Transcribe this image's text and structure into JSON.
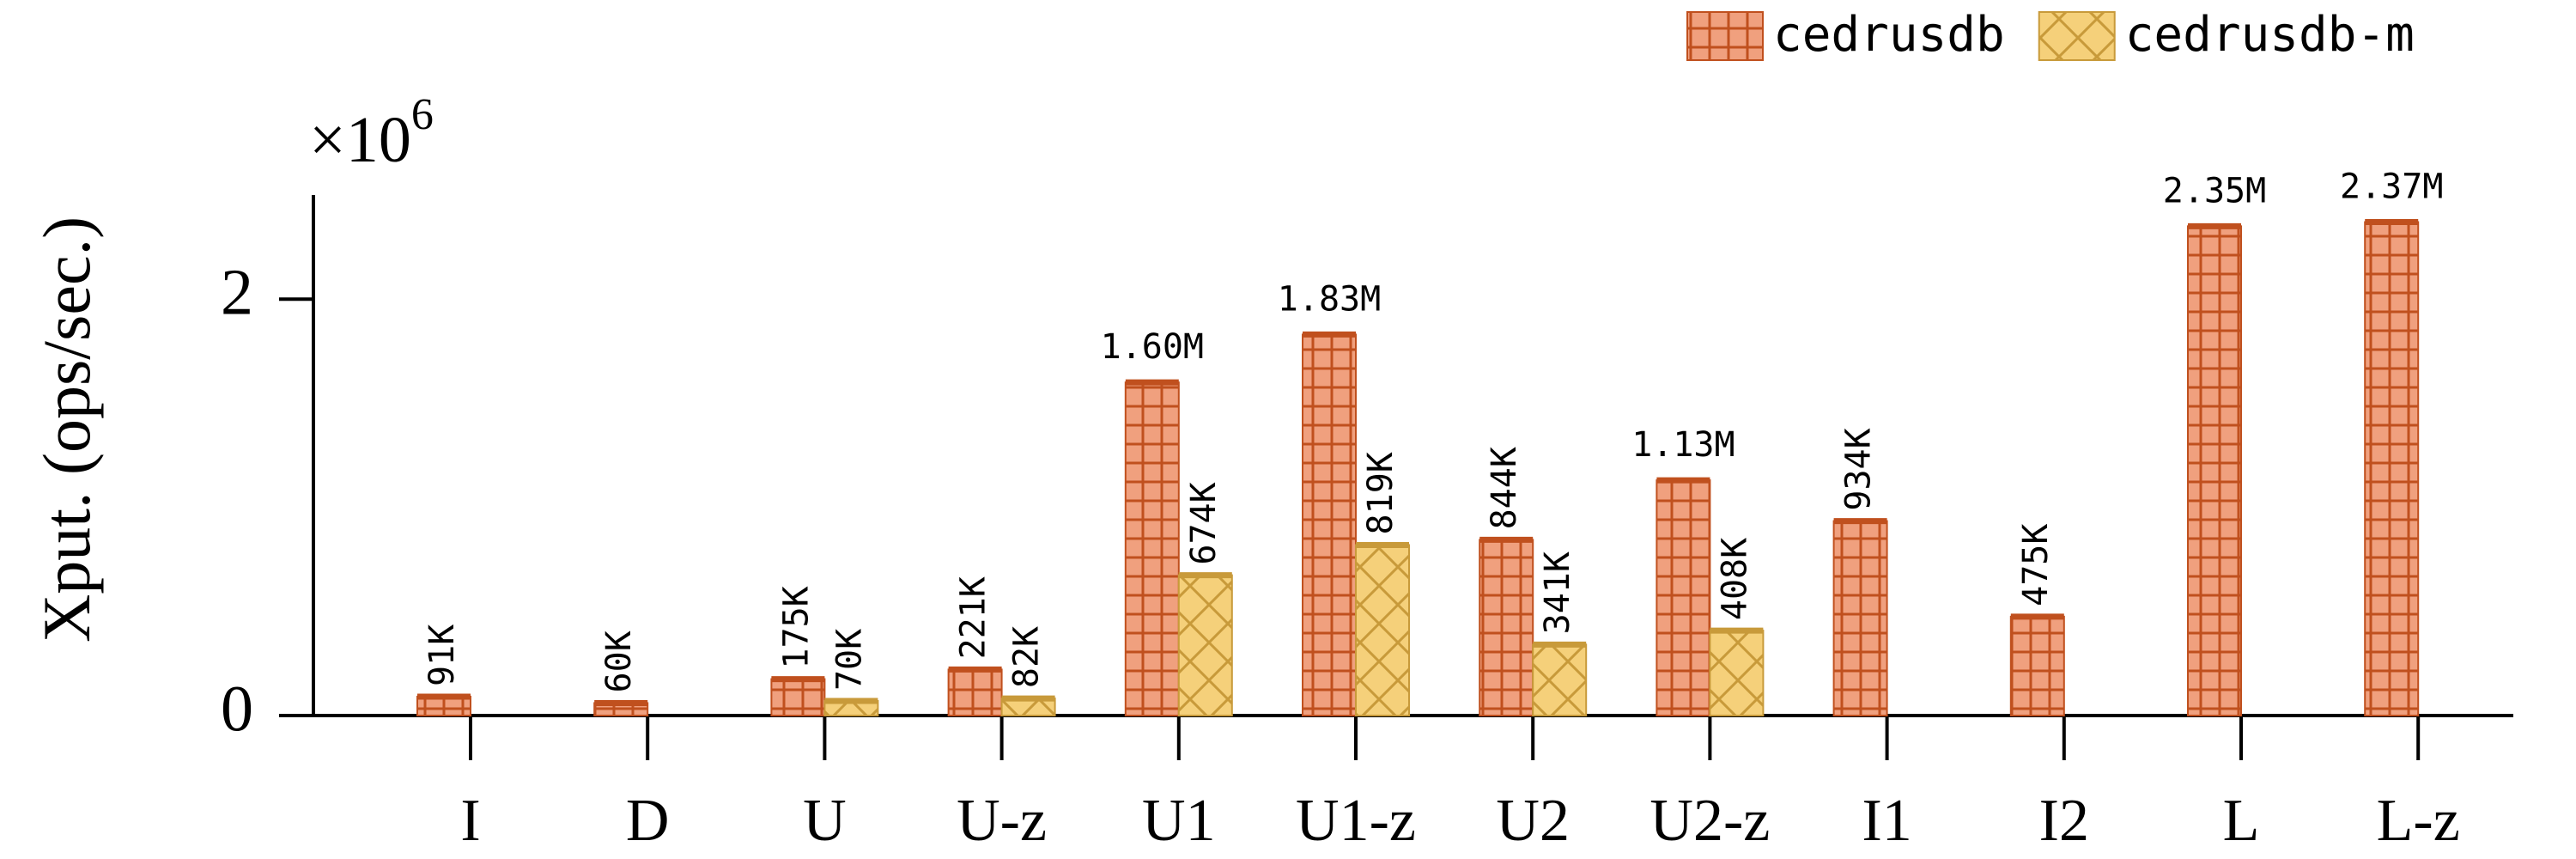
{
  "chart_data": {
    "type": "bar",
    "y_label": "Xput. (ops/sec.)",
    "y_scale": {
      "base": "×10",
      "exponent": "6"
    },
    "categories": [
      "I",
      "D",
      "U",
      "U-z",
      "U1",
      "U1-z",
      "U2",
      "U2-z",
      "I1",
      "I2",
      "L",
      "L-z"
    ],
    "series": [
      {
        "name": "cedrusdb",
        "color": "#f0a07e",
        "hatch_color": "#c0501e",
        "values": [
          0.091,
          0.06,
          0.175,
          0.221,
          1.6,
          1.83,
          0.844,
          1.13,
          0.934,
          0.475,
          2.35,
          2.37
        ],
        "value_labels": [
          "91K",
          "60K",
          "175K",
          "221K",
          "1.60M",
          "1.83M",
          "844K",
          "1.13M",
          "934K",
          "475K",
          "2.35M",
          "2.37M"
        ]
      },
      {
        "name": "cedrusdb-m",
        "color": "#f5d07a",
        "hatch_color": "#c89a3a",
        "values": [
          null,
          null,
          0.07,
          0.082,
          0.674,
          0.819,
          0.341,
          0.408,
          null,
          null,
          null,
          null
        ],
        "value_labels": [
          null,
          null,
          "70K",
          "82K",
          "674K",
          "819K",
          "341K",
          "408K",
          null,
          null,
          null,
          null
        ]
      }
    ],
    "ylim": [
      0,
      2.5
    ],
    "yticks": [
      0,
      2
    ],
    "legend": "top-right"
  }
}
